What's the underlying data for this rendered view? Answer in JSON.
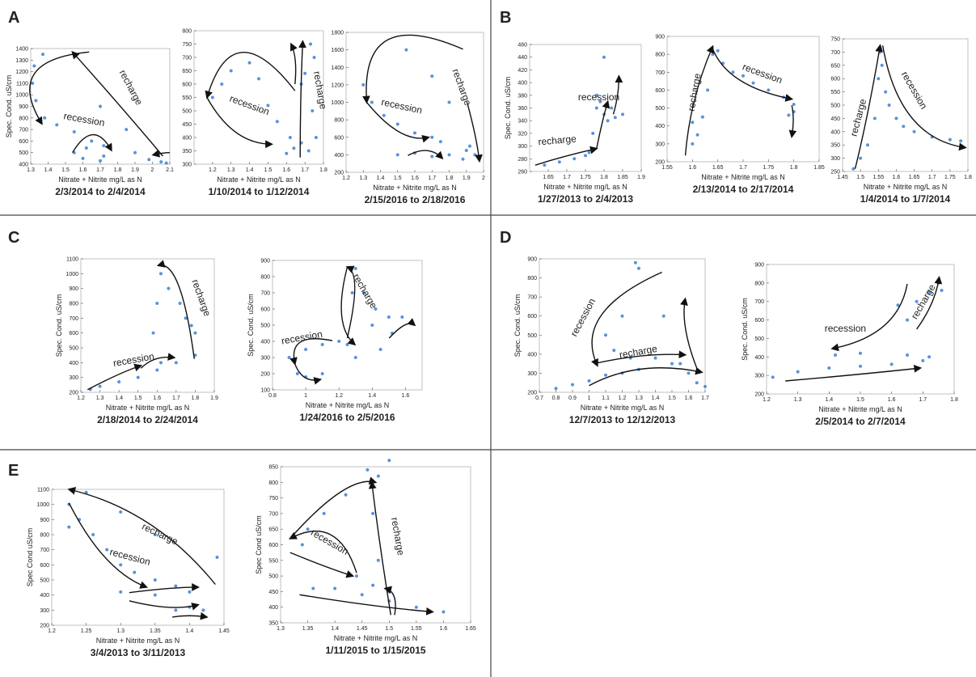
{
  "panels": [
    "A",
    "B",
    "C",
    "D",
    "E"
  ],
  "chart_data": [
    {
      "type": "scatter",
      "title": "2/3/2014 to 2/4/2014",
      "xlabel": "Nitrate + Nitrite mg/L as N",
      "ylabel": "Spec. Cond. uS/cm",
      "color": "#3d7fd6",
      "x": [
        1.37,
        1.32,
        1.31,
        1.33,
        1.38,
        1.45,
        1.55,
        1.65,
        1.72,
        1.62,
        1.55,
        1.6,
        1.7,
        1.72,
        1.9,
        1.98,
        2.05,
        2.08,
        1.85,
        1.7
      ],
      "values": [
        1350,
        1250,
        1100,
        950,
        800,
        740,
        680,
        600,
        560,
        540,
        500,
        450,
        430,
        470,
        500,
        440,
        420,
        410,
        700,
        900
      ],
      "xlim": [
        1.3,
        2.1
      ],
      "ylim": [
        400,
        1400
      ],
      "xticks": [
        1.3,
        1.4,
        1.5,
        1.6,
        1.7,
        1.8,
        1.9,
        2,
        2.1
      ],
      "yticks": [
        400,
        500,
        600,
        700,
        800,
        900,
        1000,
        1100,
        1200,
        1300,
        1400
      ],
      "annotations": [
        "recharge",
        "recession"
      ]
    },
    {
      "type": "scatter",
      "title": "1/10/2014 to 1/12/2014",
      "xlabel": "Nitrate + Nitrite mg/L as N",
      "color": "#3d7fd6",
      "x": [
        1.25,
        1.2,
        1.3,
        1.45,
        1.5,
        1.55,
        1.62,
        1.64,
        1.6,
        1.68,
        1.72,
        1.74,
        1.75,
        1.73,
        1.7,
        1.68,
        1.76,
        1.4
      ],
      "values": [
        600,
        550,
        650,
        620,
        520,
        460,
        400,
        360,
        340,
        380,
        350,
        500,
        700,
        750,
        640,
        600,
        400,
        680
      ],
      "xlim": [
        1.1,
        1.8
      ],
      "ylim": [
        300,
        800
      ],
      "xticks": [
        1.2,
        1.3,
        1.4,
        1.5,
        1.6,
        1.7,
        1.8
      ],
      "yticks": [
        300,
        350,
        400,
        450,
        500,
        550,
        600,
        650,
        700,
        750,
        800
      ],
      "annotations": [
        "recession",
        "recharge"
      ]
    },
    {
      "type": "scatter",
      "title": "2/15/2016 to 2/18/2016",
      "xlabel": "Nitrate + Nitrite mg/L as N",
      "color": "#3d7fd6",
      "x": [
        1.3,
        1.35,
        1.42,
        1.5,
        1.6,
        1.7,
        1.75,
        1.6,
        1.5,
        1.7,
        1.8,
        1.9,
        1.92,
        1.88,
        1.8,
        1.7,
        1.55,
        1.95
      ],
      "values": [
        1200,
        1000,
        850,
        750,
        650,
        600,
        550,
        420,
        400,
        380,
        400,
        450,
        500,
        350,
        1000,
        1300,
        1600,
        400
      ],
      "xlim": [
        1.2,
        2
      ],
      "ylim": [
        200,
        1800
      ],
      "xticks": [
        1.2,
        1.3,
        1.4,
        1.5,
        1.6,
        1.7,
        1.8,
        1.9,
        2
      ],
      "yticks": [
        200,
        400,
        600,
        800,
        1000,
        1200,
        1400,
        1600,
        1800
      ],
      "annotations": [
        "recession",
        "recharge"
      ]
    },
    {
      "type": "scatter",
      "title": "1/27/2013 to 2/4/2013",
      "xlabel": "Nitrate + Nitrite mg/L as N",
      "ylabel": "Spec. Cond. uS/cm",
      "color": "#3d7fd6",
      "x": [
        1.64,
        1.68,
        1.72,
        1.76,
        1.77,
        1.78,
        1.79,
        1.8,
        1.81,
        1.83,
        1.85,
        1.82,
        1.8,
        1.78,
        1.75
      ],
      "values": [
        270,
        275,
        280,
        290,
        320,
        360,
        370,
        350,
        340,
        345,
        350,
        360,
        440,
        380,
        285
      ],
      "xlim": [
        1.6,
        1.9
      ],
      "ylim": [
        260,
        460
      ],
      "xticks": [
        1.65,
        1.7,
        1.75,
        1.8,
        1.85,
        1.9
      ],
      "yticks": [
        260,
        280,
        300,
        320,
        340,
        360,
        380,
        400,
        420,
        440,
        460
      ],
      "annotations": [
        "recharge",
        "recession"
      ]
    },
    {
      "type": "scatter",
      "title": "2/13/2014 to 2/17/2014",
      "xlabel": "Nitrate + Nitrite mg/L as N",
      "color": "#3d7fd6",
      "x": [
        1.6,
        1.61,
        1.62,
        1.63,
        1.64,
        1.65,
        1.66,
        1.68,
        1.7,
        1.72,
        1.75,
        1.78,
        1.8,
        1.8,
        1.79,
        1.6
      ],
      "values": [
        300,
        350,
        450,
        600,
        800,
        820,
        750,
        700,
        680,
        640,
        600,
        560,
        520,
        480,
        460,
        420
      ],
      "xlim": [
        1.55,
        1.85
      ],
      "ylim": [
        200,
        900
      ],
      "xticks": [
        1.55,
        1.6,
        1.65,
        1.7,
        1.75,
        1.8,
        1.85
      ],
      "yticks": [
        200,
        300,
        400,
        500,
        600,
        700,
        800,
        900
      ],
      "annotations": [
        "recharge",
        "recession"
      ]
    },
    {
      "type": "scatter",
      "title": "1/4/2014 to 1/7/2014",
      "xlabel": "Nitrate + Nitrite mg/L as N",
      "color": "#3d7fd6",
      "x": [
        1.48,
        1.5,
        1.52,
        1.54,
        1.55,
        1.555,
        1.56,
        1.58,
        1.6,
        1.62,
        1.65,
        1.7,
        1.75,
        1.78,
        1.57
      ],
      "values": [
        260,
        300,
        350,
        450,
        600,
        700,
        650,
        500,
        450,
        420,
        400,
        380,
        370,
        365,
        550
      ],
      "xlim": [
        1.45,
        1.8
      ],
      "ylim": [
        250,
        750
      ],
      "xticks": [
        1.45,
        1.5,
        1.55,
        1.6,
        1.65,
        1.7,
        1.75,
        1.8
      ],
      "yticks": [
        250,
        300,
        350,
        400,
        450,
        500,
        550,
        600,
        650,
        700,
        750
      ],
      "annotations": [
        "recharge",
        "recession"
      ]
    },
    {
      "type": "scatter",
      "title": "2/18/2014 to 2/24/2014",
      "xlabel": "Nitrate + Nitrite mg/L as N",
      "ylabel": "Spec. Cond. uS/cm",
      "color": "#3d7fd6",
      "x": [
        1.25,
        1.3,
        1.4,
        1.5,
        1.6,
        1.62,
        1.58,
        1.6,
        1.62,
        1.66,
        1.72,
        1.78,
        1.8,
        1.75,
        1.7,
        1.8
      ],
      "values": [
        220,
        240,
        270,
        300,
        350,
        400,
        600,
        800,
        1000,
        900,
        800,
        650,
        450,
        700,
        400,
        600
      ],
      "xlim": [
        1.2,
        1.9
      ],
      "ylim": [
        200,
        1100
      ],
      "xticks": [
        1.2,
        1.3,
        1.4,
        1.5,
        1.6,
        1.7,
        1.8,
        1.9
      ],
      "yticks": [
        200,
        300,
        400,
        500,
        600,
        700,
        800,
        900,
        1000,
        1100
      ],
      "annotations": [
        "recharge",
        "recession"
      ]
    },
    {
      "type": "scatter",
      "title": "1/24/2016 to 2/5/2016",
      "xlabel": "Nitrate + Nitrite mg/L as N",
      "ylabel": "Spec. Cond. uS/cm",
      "color": "#3d7fd6",
      "x": [
        0.9,
        0.95,
        1.0,
        1.1,
        1.0,
        1.1,
        1.2,
        1.25,
        1.3,
        1.28,
        1.3,
        1.35,
        1.42,
        1.4,
        1.5,
        1.58,
        1.52,
        1.45
      ],
      "values": [
        300,
        200,
        180,
        200,
        350,
        380,
        400,
        380,
        300,
        700,
        850,
        700,
        600,
        500,
        550,
        550,
        450,
        350
      ],
      "xlim": [
        0.8,
        1.7
      ],
      "ylim": [
        100,
        900
      ],
      "xticks": [
        0.8,
        1,
        1.2,
        1.4,
        1.6
      ],
      "yticks": [
        100,
        200,
        300,
        400,
        500,
        600,
        700,
        800,
        900
      ],
      "annotations": [
        "recharge",
        "recession"
      ]
    },
    {
      "type": "scatter",
      "title": "12/7/2013 to 12/12/2013",
      "xlabel": "Nitrate + Nitrite mg/L as N",
      "ylabel": "Spec. Cond. uS/cm",
      "color": "#3d7fd6",
      "x": [
        0.8,
        0.9,
        1.0,
        1.1,
        1.2,
        1.3,
        1.4,
        1.5,
        1.6,
        1.65,
        1.7,
        1.1,
        1.2,
        1.28,
        1.3,
        1.45,
        1.55,
        1.15,
        1.25
      ],
      "values": [
        220,
        240,
        260,
        290,
        300,
        320,
        380,
        350,
        300,
        250,
        230,
        500,
        600,
        880,
        850,
        600,
        350,
        420,
        380
      ],
      "xlim": [
        0.7,
        1.7
      ],
      "ylim": [
        200,
        900
      ],
      "xticks": [
        0.7,
        0.8,
        0.9,
        1,
        1.1,
        1.2,
        1.3,
        1.4,
        1.5,
        1.6,
        1.7
      ],
      "yticks": [
        200,
        300,
        400,
        500,
        600,
        700,
        800,
        900
      ],
      "annotations": [
        "recession",
        "recharge"
      ]
    },
    {
      "type": "scatter",
      "title": "2/5/2014 to 2/7/2014",
      "xlabel": "Nitrate + Nitrite mg/L as N",
      "ylabel": "Spec. Cond. uS/cm",
      "color": "#3d7fd6",
      "x": [
        1.22,
        1.3,
        1.4,
        1.5,
        1.6,
        1.7,
        1.72,
        1.65,
        1.5,
        1.42,
        1.65,
        1.68,
        1.75,
        1.76,
        1.72,
        1.62
      ],
      "values": [
        290,
        320,
        340,
        350,
        360,
        380,
        400,
        410,
        420,
        410,
        600,
        700,
        800,
        760,
        750,
        680
      ],
      "xlim": [
        1.2,
        1.8
      ],
      "ylim": [
        200,
        900
      ],
      "xticks": [
        1.2,
        1.3,
        1.4,
        1.5,
        1.6,
        1.7,
        1.8
      ],
      "yticks": [
        200,
        300,
        400,
        500,
        600,
        700,
        800,
        900
      ],
      "annotations": [
        "recession",
        "recharge"
      ]
    },
    {
      "type": "scatter",
      "title": "3/4/2013 to 3/11/2013",
      "xlabel": "Nitrate + Nitrite mg/L as N",
      "ylabel": "Spec Cond uS/cm",
      "color": "#3d7fd6",
      "x": [
        1.225,
        1.225,
        1.24,
        1.26,
        1.28,
        1.3,
        1.32,
        1.35,
        1.38,
        1.4,
        1.3,
        1.35,
        1.4,
        1.42,
        1.25,
        1.3,
        1.35,
        1.44,
        1.38
      ],
      "values": [
        1000,
        850,
        900,
        800,
        700,
        600,
        550,
        500,
        460,
        420,
        420,
        400,
        320,
        300,
        1080,
        950,
        800,
        650,
        300
      ],
      "xlim": [
        1.2,
        1.45
      ],
      "ylim": [
        200,
        1100
      ],
      "xticks": [
        1.2,
        1.25,
        1.3,
        1.35,
        1.4,
        1.45
      ],
      "yticks": [
        200,
        300,
        400,
        500,
        600,
        700,
        800,
        900,
        1000,
        1100
      ],
      "annotations": [
        "recharge",
        "recession"
      ]
    },
    {
      "type": "scatter",
      "title": "1/11/2015 to 1/15/2015",
      "xlabel": "Nitrate + Nitrite mg/L as N",
      "ylabel": "Spec Cond uS/cm",
      "color": "#3d7fd6",
      "x": [
        1.35,
        1.34,
        1.38,
        1.42,
        1.46,
        1.48,
        1.47,
        1.48,
        1.47,
        1.44,
        1.4,
        1.45,
        1.5,
        1.55,
        1.6,
        1.5,
        1.36,
        1.5
      ],
      "values": [
        650,
        600,
        700,
        760,
        840,
        820,
        700,
        550,
        470,
        500,
        460,
        440,
        420,
        400,
        385,
        450,
        460,
        870
      ],
      "xlim": [
        1.3,
        1.65
      ],
      "ylim": [
        350,
        850
      ],
      "xticks": [
        1.3,
        1.35,
        1.4,
        1.45,
        1.5,
        1.55,
        1.6,
        1.65
      ],
      "yticks": [
        350,
        400,
        450,
        500,
        550,
        600,
        650,
        700,
        750,
        800,
        850
      ],
      "annotations": [
        "recession",
        "recharge"
      ]
    }
  ]
}
